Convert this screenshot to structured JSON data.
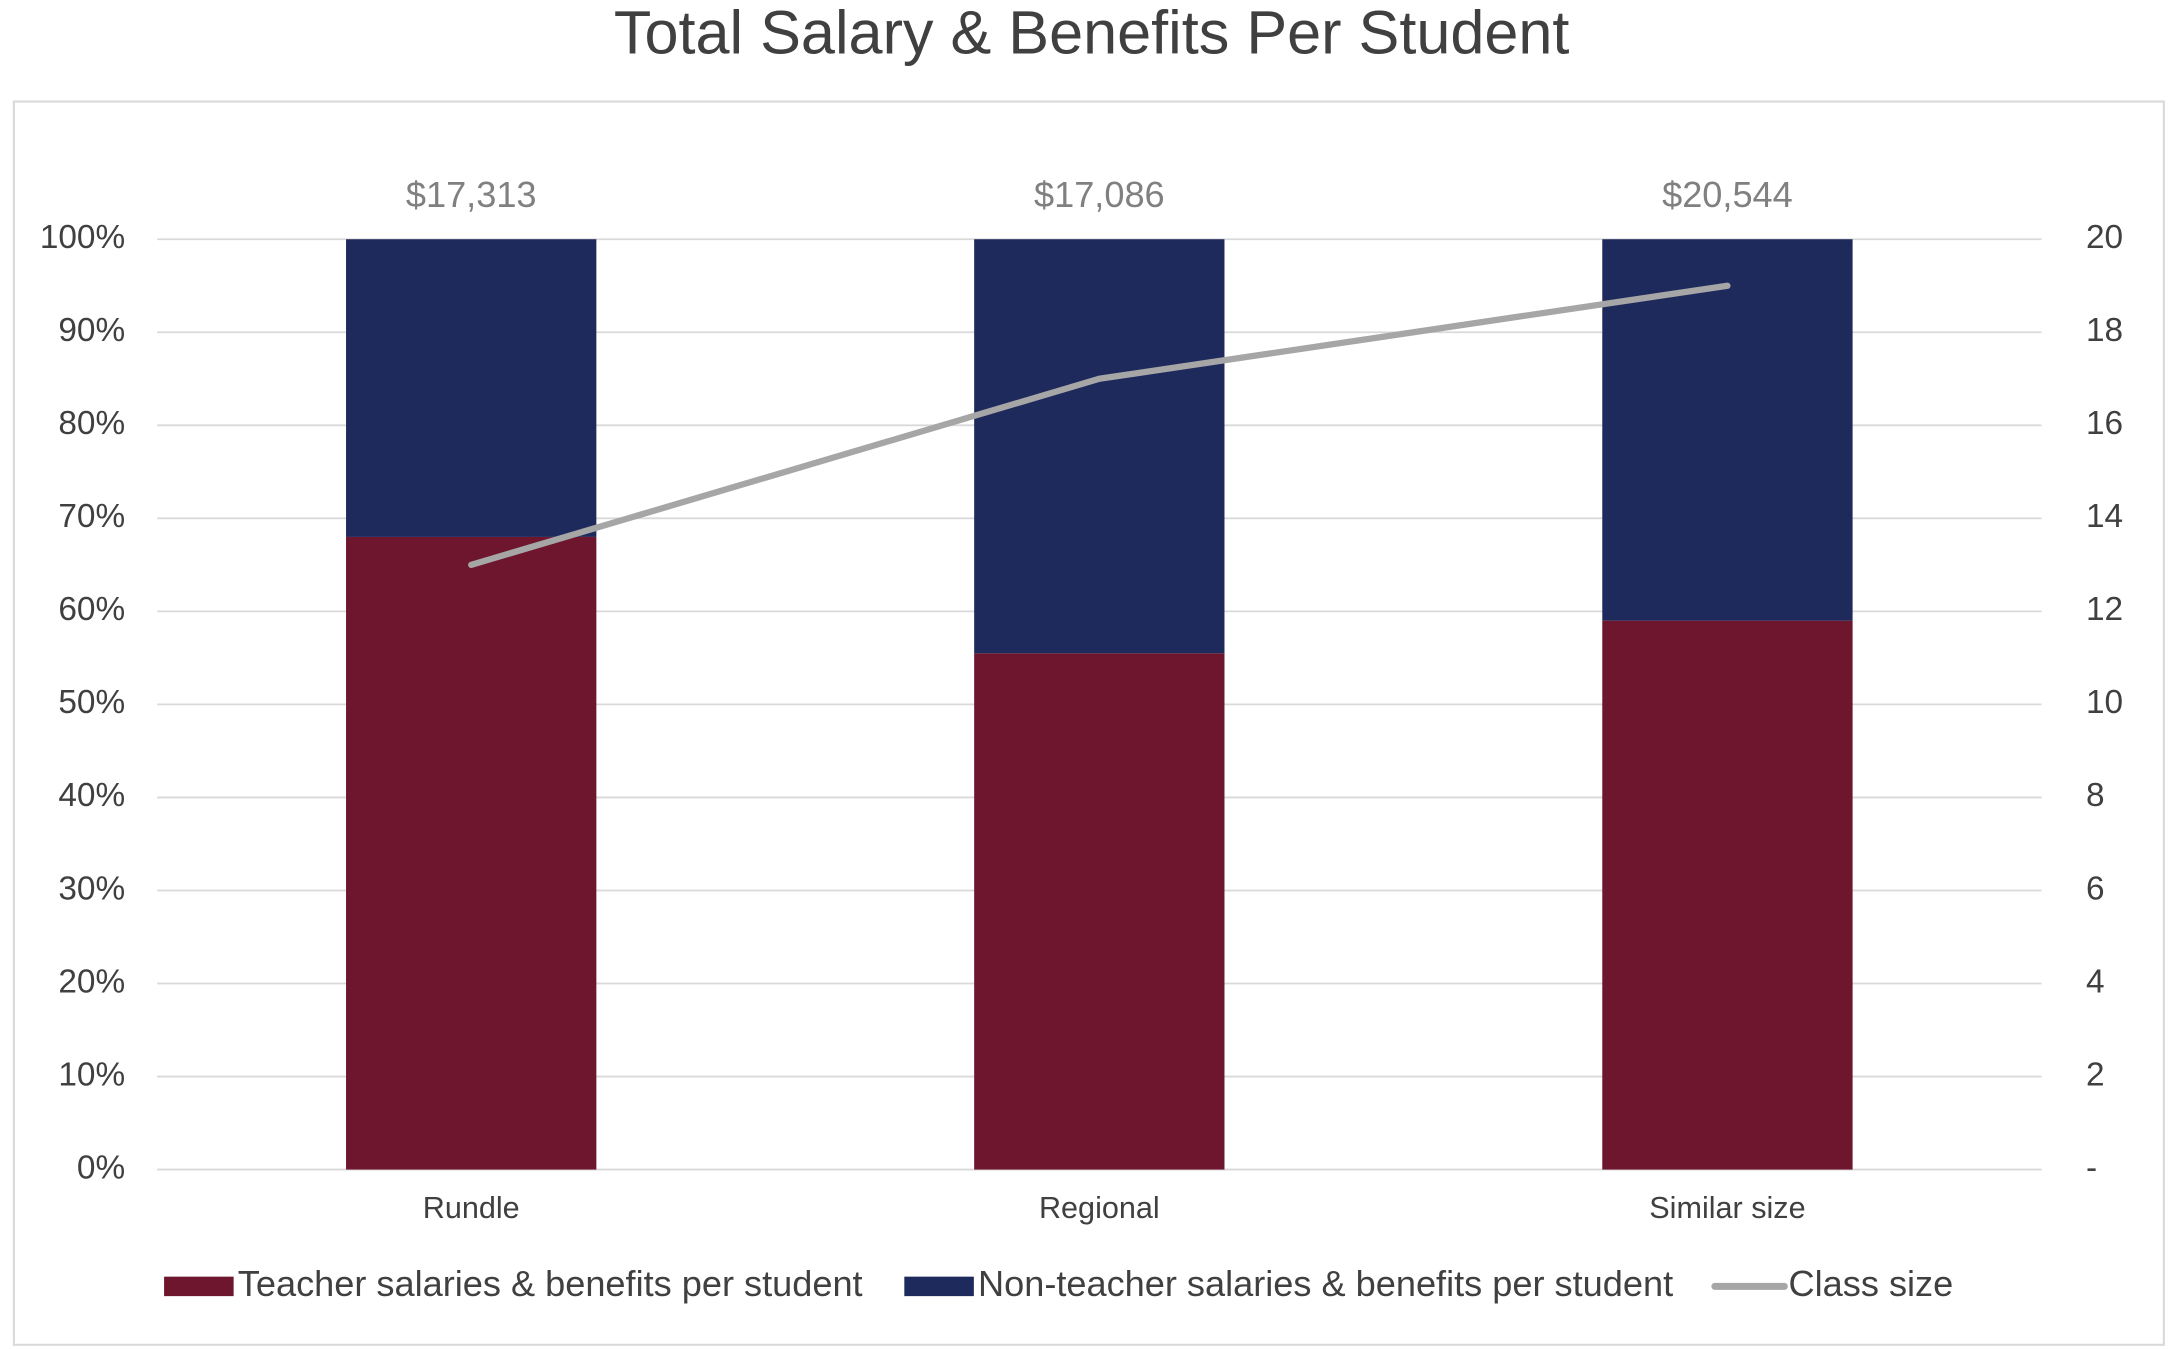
{
  "chart_data": {
    "type": "stacked_bar_line",
    "title": "Total Salary & Benefits Per Student",
    "categories": [
      "Rundle",
      "Regional",
      "Similar size"
    ],
    "annotations": [
      "$17,313",
      "$17,086",
      "$20,544"
    ],
    "series": [
      {
        "name": "Teacher salaries & benefits per student",
        "color": "#6d162e",
        "values": [
          68,
          55.5,
          59
        ]
      },
      {
        "name": "Non-teacher salaries & benefits per student",
        "color": "#1f2a5c",
        "values": [
          32,
          44.5,
          41
        ]
      },
      {
        "name": "Class size",
        "color": "#a6a6a6",
        "values": [
          13,
          17,
          19
        ],
        "axis": "y2"
      }
    ],
    "ylim": [
      0,
      100
    ],
    "yticks": [
      {
        "value": 0,
        "label": "0%"
      },
      {
        "value": 10,
        "label": "10%"
      },
      {
        "value": 20,
        "label": "20%"
      },
      {
        "value": 30,
        "label": "30%"
      },
      {
        "value": 40,
        "label": "40%"
      },
      {
        "value": 50,
        "label": "50%"
      },
      {
        "value": 60,
        "label": "60%"
      },
      {
        "value": 70,
        "label": "70%"
      },
      {
        "value": 80,
        "label": "80%"
      },
      {
        "value": 90,
        "label": "90%"
      },
      {
        "value": 100,
        "label": "100%"
      }
    ],
    "y2lim": [
      0,
      20
    ],
    "y2ticks": [
      {
        "value": 0,
        "label": "-"
      },
      2,
      4,
      6,
      8,
      10,
      12,
      14,
      16,
      18,
      20
    ],
    "grid": true,
    "legend": "bottom"
  }
}
